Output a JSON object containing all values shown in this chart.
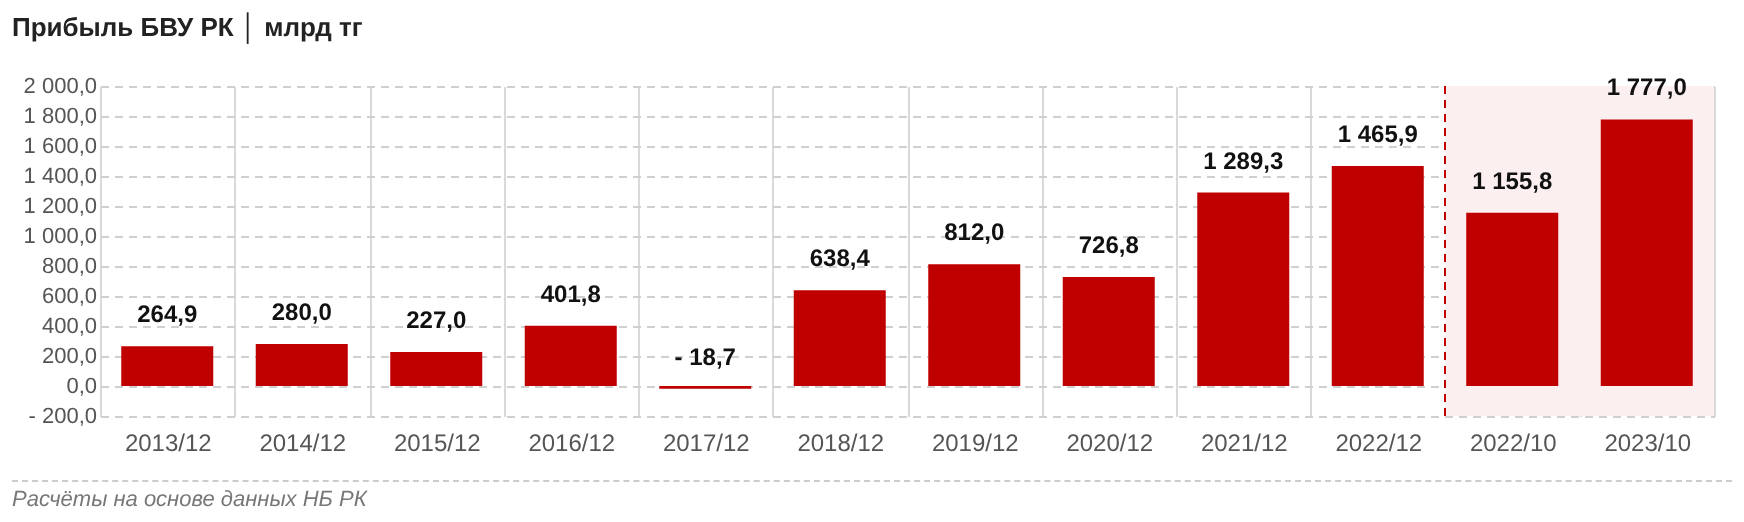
{
  "chart_data": {
    "type": "bar",
    "title": "Прибыль БВУ РК │ млрд тг",
    "categories": [
      "2013/12",
      "2014/12",
      "2015/12",
      "2016/12",
      "2017/12",
      "2018/12",
      "2019/12",
      "2020/12",
      "2021/12",
      "2022/12",
      "2022/10",
      "2023/10"
    ],
    "values": [
      264.9,
      280.0,
      227.0,
      401.8,
      -18.7,
      638.4,
      812.0,
      726.8,
      1289.3,
      1465.9,
      1155.8,
      1777.0
    ],
    "value_labels": [
      "264,9",
      "280,0",
      "227,0",
      "401,8",
      "- 18,7",
      "638,4",
      "812,0",
      "726,8",
      "1 289,3",
      "1 465,9",
      "1 155,8",
      "1 777,0"
    ],
    "color": "#c00000",
    "ylim": [
      -200,
      2000
    ],
    "yticks": [
      {
        "value": -200,
        "label": "- 200,0"
      },
      {
        "value": 0,
        "label": "0,0"
      },
      {
        "value": 200,
        "label": "200,0"
      },
      {
        "value": 400,
        "label": "400,0"
      },
      {
        "value": 600,
        "label": "600,0"
      },
      {
        "value": 800,
        "label": "800,0"
      },
      {
        "value": 1000,
        "label": "1 000,0"
      },
      {
        "value": 1200,
        "label": "1 200,0"
      },
      {
        "value": 1400,
        "label": "1 400,0"
      },
      {
        "value": 1600,
        "label": "1 600,0"
      },
      {
        "value": 1800,
        "label": "1 800,0"
      },
      {
        "value": 2000,
        "label": "2 000,0"
      }
    ],
    "bands": [
      {
        "axis": "x",
        "from": "2022/10",
        "to": "2023/10",
        "color": "#fcefef"
      }
    ],
    "ref_lines": [
      {
        "axis": "x",
        "value": "2022/10",
        "color": "#c00000",
        "line_style": "dashed"
      }
    ],
    "grid": true,
    "annotations": [
      "Расчёты на основе данных НБ РК"
    ]
  }
}
